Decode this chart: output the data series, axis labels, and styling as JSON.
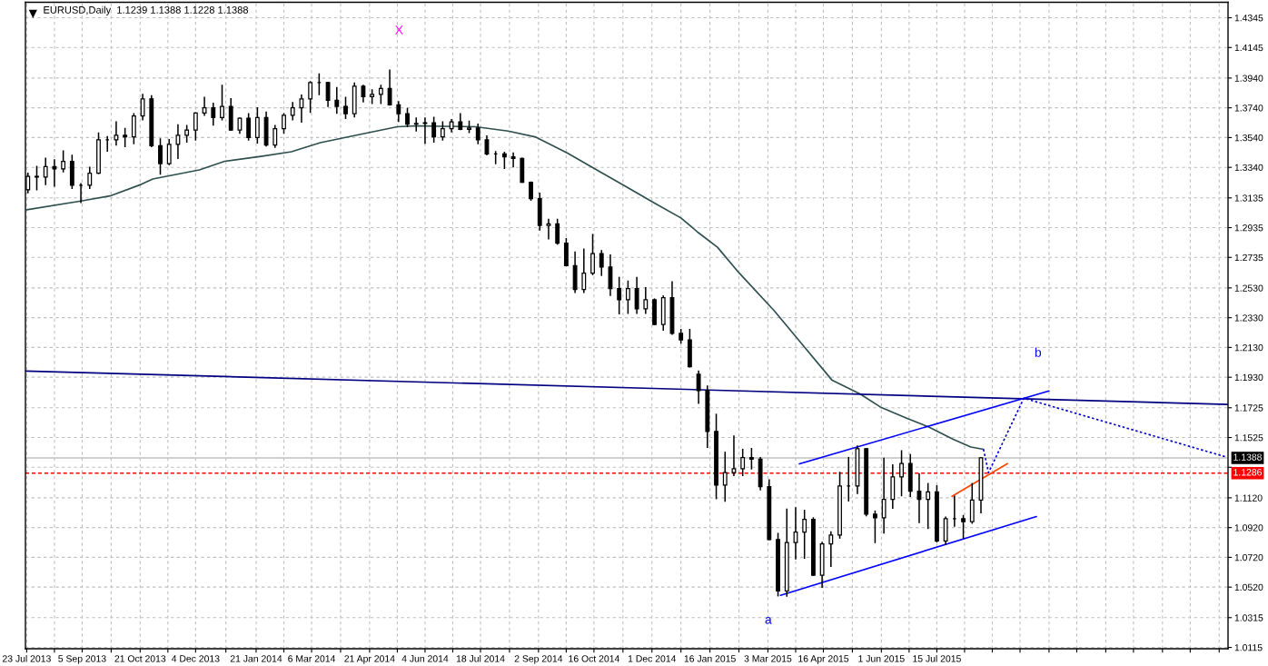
{
  "chart_data": {
    "type": "candlestick",
    "title": "EURUSD,Daily  1.1239 1.1388 1.1228 1.1388",
    "color": "#000000",
    "x": [
      "2013-07-24",
      "2013-07-31",
      "2013-08-07",
      "2013-08-14",
      "2013-08-21",
      "2013-08-28",
      "2013-09-04",
      "2013-09-11",
      "2013-09-18",
      "2013-09-25",
      "2013-10-02",
      "2013-10-09",
      "2013-10-16",
      "2013-10-23",
      "2013-10-30",
      "2013-11-06",
      "2013-11-13",
      "2013-11-20",
      "2013-11-27",
      "2013-12-04",
      "2013-12-11",
      "2013-12-18",
      "2013-12-25",
      "2014-01-01",
      "2014-01-08",
      "2014-01-15",
      "2014-01-22",
      "2014-01-29",
      "2014-02-05",
      "2014-02-12",
      "2014-02-19",
      "2014-02-26",
      "2014-03-05",
      "2014-03-12",
      "2014-03-19",
      "2014-03-26",
      "2014-04-02",
      "2014-04-09",
      "2014-04-16",
      "2014-04-23",
      "2014-04-30",
      "2014-05-07",
      "2014-05-14",
      "2014-05-21",
      "2014-05-28",
      "2014-06-04",
      "2014-06-11",
      "2014-06-18",
      "2014-06-25",
      "2014-07-02",
      "2014-07-09",
      "2014-07-16",
      "2014-07-23",
      "2014-07-30",
      "2014-08-06",
      "2014-08-13",
      "2014-08-20",
      "2014-08-27",
      "2014-09-03",
      "2014-09-10",
      "2014-09-17",
      "2014-09-24",
      "2014-10-01",
      "2014-10-08",
      "2014-10-15",
      "2014-10-22",
      "2014-10-29",
      "2014-11-05",
      "2014-11-12",
      "2014-11-19",
      "2014-11-26",
      "2014-12-03",
      "2014-12-10",
      "2014-12-17",
      "2014-12-24",
      "2014-12-31",
      "2015-01-07",
      "2015-01-14",
      "2015-01-21",
      "2015-01-28",
      "2015-02-04",
      "2015-02-11",
      "2015-02-18",
      "2015-02-25",
      "2015-03-04",
      "2015-03-11",
      "2015-03-18",
      "2015-03-25",
      "2015-04-01",
      "2015-04-08",
      "2015-04-15",
      "2015-04-22",
      "2015-04-29",
      "2015-05-06",
      "2015-05-13",
      "2015-05-20",
      "2015-05-27",
      "2015-06-03",
      "2015-06-10",
      "2015-06-17",
      "2015-06-24",
      "2015-07-01",
      "2015-07-08",
      "2015-07-15",
      "2015-07-22",
      "2015-07-29",
      "2015-08-05",
      "2015-08-12",
      "2015-08-19"
    ],
    "ohlc": [
      [
        1.319,
        1.33,
        1.317,
        1.328
      ],
      [
        1.328,
        1.3345,
        1.319,
        1.3275
      ],
      [
        1.3275,
        1.34,
        1.3225,
        1.3345
      ],
      [
        1.3345,
        1.339,
        1.3215,
        1.333
      ],
      [
        1.333,
        1.345,
        1.331,
        1.338
      ],
      [
        1.338,
        1.342,
        1.32,
        1.322
      ],
      [
        1.322,
        1.323,
        1.3105,
        1.322
      ],
      [
        1.322,
        1.334,
        1.32,
        1.33
      ],
      [
        1.33,
        1.357,
        1.33,
        1.3525
      ],
      [
        1.3525,
        1.3545,
        1.345,
        1.3525
      ],
      [
        1.3525,
        1.3645,
        1.349,
        1.3555
      ],
      [
        1.3555,
        1.36,
        1.348,
        1.3545
      ],
      [
        1.3545,
        1.37,
        1.35,
        1.3685
      ],
      [
        1.3685,
        1.383,
        1.366,
        1.38
      ],
      [
        1.38,
        1.382,
        1.348,
        1.3485
      ],
      [
        1.3485,
        1.353,
        1.3295,
        1.3365
      ],
      [
        1.3365,
        1.3525,
        1.336,
        1.3495
      ],
      [
        1.3495,
        1.3625,
        1.34,
        1.3555
      ],
      [
        1.3555,
        1.362,
        1.351,
        1.359
      ],
      [
        1.359,
        1.3705,
        1.3525,
        1.3705
      ],
      [
        1.3705,
        1.381,
        1.369,
        1.374
      ],
      [
        1.374,
        1.377,
        1.3625,
        1.3675
      ],
      [
        1.3675,
        1.389,
        1.366,
        1.375
      ],
      [
        1.375,
        1.38,
        1.359,
        1.359
      ],
      [
        1.359,
        1.367,
        1.357,
        1.367
      ],
      [
        1.367,
        1.37,
        1.3525,
        1.354
      ],
      [
        1.354,
        1.374,
        1.3505,
        1.3675
      ],
      [
        1.3675,
        1.371,
        1.3485,
        1.349
      ],
      [
        1.349,
        1.362,
        1.3475,
        1.36
      ],
      [
        1.36,
        1.37,
        1.357,
        1.369
      ],
      [
        1.369,
        1.3775,
        1.366,
        1.374
      ],
      [
        1.374,
        1.3825,
        1.3645,
        1.38
      ],
      [
        1.38,
        1.3915,
        1.371,
        1.391
      ],
      [
        1.391,
        1.3967,
        1.383,
        1.391
      ],
      [
        1.391,
        1.391,
        1.375,
        1.379
      ],
      [
        1.379,
        1.3875,
        1.3705,
        1.375
      ],
      [
        1.375,
        1.381,
        1.367,
        1.37
      ],
      [
        1.37,
        1.3905,
        1.368,
        1.3885
      ],
      [
        1.3885,
        1.389,
        1.378,
        1.3815
      ],
      [
        1.3815,
        1.386,
        1.377,
        1.383
      ],
      [
        1.383,
        1.389,
        1.377,
        1.387
      ],
      [
        1.387,
        1.3993,
        1.376,
        1.376
      ],
      [
        1.376,
        1.378,
        1.365,
        1.37
      ],
      [
        1.37,
        1.3735,
        1.3615,
        1.363
      ],
      [
        1.363,
        1.367,
        1.3585,
        1.3635
      ],
      [
        1.3635,
        1.367,
        1.3503,
        1.364
      ],
      [
        1.364,
        1.3675,
        1.351,
        1.3545
      ],
      [
        1.3545,
        1.3645,
        1.3525,
        1.36
      ],
      [
        1.36,
        1.366,
        1.358,
        1.3645
      ],
      [
        1.3645,
        1.37,
        1.3595,
        1.3595
      ],
      [
        1.3595,
        1.365,
        1.3575,
        1.3605
      ],
      [
        1.3605,
        1.363,
        1.35,
        1.3525
      ],
      [
        1.3525,
        1.355,
        1.3425,
        1.343
      ],
      [
        1.343,
        1.3445,
        1.3365,
        1.343
      ],
      [
        1.343,
        1.344,
        1.3333,
        1.341
      ],
      [
        1.341,
        1.3435,
        1.3345,
        1.34
      ],
      [
        1.34,
        1.34,
        1.324,
        1.324
      ],
      [
        1.324,
        1.324,
        1.312,
        1.313
      ],
      [
        1.313,
        1.3165,
        1.292,
        1.295
      ],
      [
        1.295,
        1.299,
        1.286,
        1.296
      ],
      [
        1.296,
        1.299,
        1.2825,
        1.283
      ],
      [
        1.283,
        1.286,
        1.268,
        1.268
      ],
      [
        1.268,
        1.277,
        1.25,
        1.252
      ],
      [
        1.252,
        1.279,
        1.25,
        1.263
      ],
      [
        1.263,
        1.2888,
        1.262,
        1.276
      ],
      [
        1.276,
        1.278,
        1.2615,
        1.267
      ],
      [
        1.267,
        1.275,
        1.248,
        1.2525
      ],
      [
        1.2525,
        1.26,
        1.2357,
        1.245
      ],
      [
        1.245,
        1.2575,
        1.236,
        1.2525
      ],
      [
        1.2525,
        1.26,
        1.236,
        1.239
      ],
      [
        1.239,
        1.253,
        1.236,
        1.245
      ],
      [
        1.245,
        1.2455,
        1.2285,
        1.2285
      ],
      [
        1.2285,
        1.2475,
        1.2247,
        1.2465
      ],
      [
        1.2465,
        1.257,
        1.222,
        1.2225
      ],
      [
        1.2225,
        1.225,
        1.216,
        1.218
      ],
      [
        1.218,
        1.225,
        1.2,
        1.2
      ],
      [
        1.195,
        1.197,
        1.1755,
        1.184
      ],
      [
        1.184,
        1.187,
        1.146,
        1.1565
      ],
      [
        1.1565,
        1.168,
        1.1115,
        1.1205
      ],
      [
        1.1205,
        1.1425,
        1.1098,
        1.129
      ],
      [
        1.129,
        1.1535,
        1.127,
        1.1315
      ],
      [
        1.1315,
        1.1445,
        1.127,
        1.139
      ],
      [
        1.139,
        1.145,
        1.1315,
        1.138
      ],
      [
        1.138,
        1.139,
        1.1175,
        1.1195
      ],
      [
        1.1195,
        1.124,
        1.084,
        1.084
      ],
      [
        1.084,
        1.088,
        1.0462,
        1.0495
      ],
      [
        1.0495,
        1.1043,
        1.046,
        1.082
      ],
      [
        1.082,
        1.1052,
        1.071,
        1.089
      ],
      [
        1.089,
        1.1035,
        1.0715,
        1.0975
      ],
      [
        1.0975,
        1.0985,
        1.06,
        1.06
      ],
      [
        1.06,
        1.082,
        1.052,
        1.081
      ],
      [
        1.081,
        1.089,
        1.066,
        1.087
      ],
      [
        1.087,
        1.129,
        1.085,
        1.12
      ],
      [
        1.12,
        1.139,
        1.11,
        1.12
      ],
      [
        1.12,
        1.1467,
        1.115,
        1.145
      ],
      [
        1.145,
        1.145,
        1.1,
        1.101
      ],
      [
        1.101,
        1.103,
        1.082,
        1.0985
      ],
      [
        1.0985,
        1.1385,
        1.0885,
        1.111
      ],
      [
        1.111,
        1.134,
        1.105,
        1.126
      ],
      [
        1.126,
        1.1435,
        1.1135,
        1.135
      ],
      [
        1.135,
        1.141,
        1.113,
        1.1165
      ],
      [
        1.1165,
        1.128,
        1.0955,
        1.111
      ],
      [
        1.111,
        1.1215,
        1.0915,
        1.116
      ],
      [
        1.116,
        1.12,
        1.0825,
        1.083
      ],
      [
        1.083,
        1.099,
        1.0808,
        1.098
      ],
      [
        1.098,
        1.113,
        1.093,
        1.098
      ],
      [
        1.098,
        1.1,
        1.085,
        1.096
      ],
      [
        1.096,
        1.1215,
        1.095,
        1.1105
      ],
      [
        1.1105,
        1.1388,
        1.102,
        1.1388
      ]
    ],
    "series": [
      {
        "type": "line",
        "color": "#2f4f4f",
        "x": [
          "2013-07-23",
          "2013-09-04",
          "2013-09-28",
          "2013-10-22",
          "2013-10-31",
          "2013-12-07",
          "2013-12-27",
          "2014-01-26",
          "2014-02-18",
          "2014-03-13",
          "2014-04-15",
          "2014-05-13",
          "2014-05-29",
          "2014-06-17",
          "2014-07-14",
          "2014-08-09",
          "2014-08-31",
          "2014-09-25",
          "2014-10-16",
          "2014-11-09",
          "2014-12-03",
          "2014-12-24",
          "2015-01-07",
          "2015-01-22",
          "2015-02-08",
          "2015-03-08",
          "2015-03-29",
          "2015-04-23",
          "2015-05-15",
          "2015-06-01",
          "2015-06-21",
          "2015-07-09",
          "2015-07-28",
          "2015-08-11",
          "2015-08-21"
        ],
        "values": [
          1.3055,
          1.3114,
          1.315,
          1.3226,
          1.3262,
          1.3323,
          1.3381,
          1.3415,
          1.3445,
          1.3506,
          1.3564,
          1.3613,
          1.3619,
          1.3616,
          1.3613,
          1.3584,
          1.3543,
          1.3436,
          1.3334,
          1.3218,
          1.31,
          1.3,
          1.29,
          1.2803,
          1.2632,
          1.2377,
          1.2163,
          1.1909,
          1.1818,
          1.1726,
          1.1655,
          1.1594,
          1.1513,
          1.1461,
          1.1446
        ]
      },
      {
        "type": "line",
        "color": "#000080",
        "x": [
          "2013-07-22",
          "2016-03-02"
        ],
        "values": [
          1.1972,
          1.1747
        ]
      },
      {
        "type": "line",
        "color": "#0000ff",
        "x": [
          "2015-03-28",
          "2015-10-12"
        ],
        "values": [
          1.1348,
          1.1838
        ]
      },
      {
        "type": "line",
        "color": "#0000ff",
        "x": [
          "2015-03-13",
          "2015-10-02"
        ],
        "values": [
          1.0465,
          1.0994
        ]
      },
      {
        "type": "line",
        "color": "#ff4500",
        "x": [
          "2015-07-27",
          "2015-09-09"
        ],
        "values": [
          1.113,
          1.135
        ]
      },
      {
        "type": "line",
        "color": "#0000cd",
        "line_style": "dotted",
        "x": [
          "2015-08-21",
          "2015-08-25",
          "2015-09-22",
          "2016-03-01"
        ],
        "values": [
          1.1446,
          1.1289,
          1.1789,
          1.1393
        ]
      }
    ],
    "ref_lines": [
      {
        "axis": "y",
        "value": 1.1388,
        "label": "1.1388",
        "color": "#c0c0c0",
        "line_style": "solid"
      },
      {
        "axis": "y",
        "value": 1.1286,
        "label": "1.1286",
        "color": "#ff0000",
        "line_style": "dashed"
      }
    ],
    "annotations": [
      "X",
      "a",
      "b"
    ],
    "xlim": [
      "2013-07-22",
      "2016-03-02"
    ],
    "ylim": [
      1.0106,
      1.4449
    ],
    "xticks": [
      {
        "value": "2013-07-23",
        "label": "23 Jul 2013"
      },
      {
        "value": "2013-08-14",
        "label": null
      },
      {
        "value": "2013-09-05",
        "label": "5 Sep 2013"
      },
      {
        "value": "2013-09-28",
        "label": null
      },
      {
        "value": "2013-10-21",
        "label": "21 Oct 2013"
      },
      {
        "value": "2013-11-12",
        "label": null
      },
      {
        "value": "2013-12-04",
        "label": "4 Dec 2013"
      },
      {
        "value": "2013-12-28",
        "label": null
      },
      {
        "value": "2014-01-21",
        "label": "21 Jan 2014"
      },
      {
        "value": "2014-02-12",
        "label": null
      },
      {
        "value": "2014-03-06",
        "label": "6 Mar 2014"
      },
      {
        "value": "2014-03-29",
        "label": null
      },
      {
        "value": "2014-04-21",
        "label": "21 Apr 2014"
      },
      {
        "value": "2014-05-13",
        "label": null
      },
      {
        "value": "2014-06-04",
        "label": "4 Jun 2014"
      },
      {
        "value": "2014-06-26",
        "label": null
      },
      {
        "value": "2014-07-18",
        "label": "18 Jul 2014"
      },
      {
        "value": "2014-08-10",
        "label": null
      },
      {
        "value": "2014-09-02",
        "label": "2 Sep 2014"
      },
      {
        "value": "2014-09-24",
        "label": null
      },
      {
        "value": "2014-10-16",
        "label": "16 Oct 2014"
      },
      {
        "value": "2014-11-08",
        "label": null
      },
      {
        "value": "2014-12-01",
        "label": "1 Dec 2014"
      },
      {
        "value": "2014-12-24",
        "label": null
      },
      {
        "value": "2015-01-16",
        "label": "16 Jan 2015"
      },
      {
        "value": "2015-02-08",
        "label": null
      },
      {
        "value": "2015-03-03",
        "label": "3 Mar 2015"
      },
      {
        "value": "2015-03-25",
        "label": null
      },
      {
        "value": "2015-04-16",
        "label": "16 Apr 2015"
      },
      {
        "value": "2015-05-09",
        "label": null
      },
      {
        "value": "2015-06-01",
        "label": "1 Jun 2015"
      },
      {
        "value": "2015-06-23",
        "label": null
      },
      {
        "value": "2015-07-15",
        "label": "15 Jul 2015"
      },
      {
        "value": "2015-08-06",
        "label": null
      },
      {
        "value": "2015-08-28",
        "label": null
      },
      {
        "value": "2015-09-19",
        "label": null
      },
      {
        "value": "2015-10-12",
        "label": null
      },
      {
        "value": "2015-11-03",
        "label": null
      },
      {
        "value": "2015-11-26",
        "label": null
      },
      {
        "value": "2015-12-18",
        "label": null
      },
      {
        "value": "2016-01-10",
        "label": null
      },
      {
        "value": "2016-02-01",
        "label": null
      },
      {
        "value": "2016-02-24",
        "label": null
      }
    ],
    "yticks": [
      1.0115,
      1.0315,
      {
        "value": 1.052,
        "label": "1.0520"
      },
      {
        "value": 1.072,
        "label": "1.0720"
      },
      {
        "value": 1.092,
        "label": "1.0920"
      },
      {
        "value": 1.112,
        "label": "1.1120"
      },
      {
        "value": 1.1325,
        "label": null
      },
      1.1525,
      1.1725,
      {
        "value": 1.193,
        "label": "1.1930"
      },
      {
        "value": 1.213,
        "label": "1.2130"
      },
      {
        "value": 1.233,
        "label": "1.2330"
      },
      {
        "value": 1.253,
        "label": "1.2530"
      },
      1.2735,
      1.2935,
      1.3135,
      {
        "value": 1.334,
        "label": "1.3340"
      },
      {
        "value": 1.354,
        "label": "1.3540"
      },
      {
        "value": 1.374,
        "label": "1.3740"
      },
      {
        "value": 1.394,
        "label": "1.3940"
      },
      1.4145,
      1.4345
    ],
    "grid": true
  }
}
